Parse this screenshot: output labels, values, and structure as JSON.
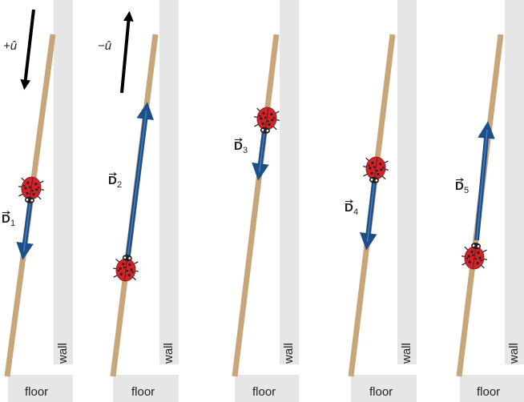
{
  "floor_label": "floor",
  "wall_label": "wall",
  "direction_labels": {
    "positive": "+û",
    "negative": "−û"
  },
  "panels": [
    {
      "vector_name": "D",
      "vector_subscript": "1"
    },
    {
      "vector_name": "D",
      "vector_subscript": "2"
    },
    {
      "vector_name": "D",
      "vector_subscript": "3"
    },
    {
      "vector_name": "D",
      "vector_subscript": "4"
    },
    {
      "vector_name": "D",
      "vector_subscript": "5"
    }
  ],
  "colors": {
    "wall": "#e6e6e7",
    "floor": "#e6e6e7",
    "ladder": "#c9a57a",
    "vector": "#1b4f8a",
    "ladybug": "#d2232a"
  }
}
